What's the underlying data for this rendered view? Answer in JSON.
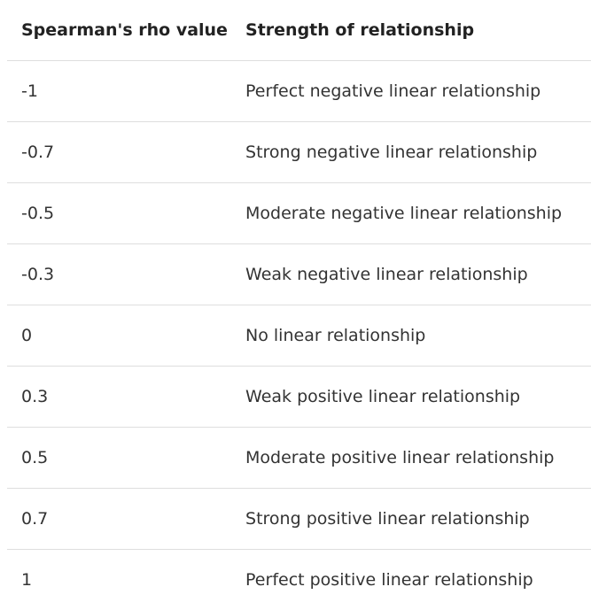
{
  "table": {
    "headers": [
      "Spearman's rho value",
      "Strength of relationship"
    ],
    "rows": [
      [
        "-1",
        "Perfect negative linear relationship"
      ],
      [
        "-0.7",
        "Strong negative linear relationship"
      ],
      [
        "-0.5",
        "Moderate negative linear relationship"
      ],
      [
        "-0.3",
        "Weak negative linear relationship"
      ],
      [
        "0",
        "No linear relationship"
      ],
      [
        "0.3",
        "Weak positive linear relationship"
      ],
      [
        "0.5",
        "Moderate positive linear relationship"
      ],
      [
        "0.7",
        "Strong positive linear relationship"
      ],
      [
        "1",
        "Perfect positive linear relationship"
      ]
    ]
  }
}
